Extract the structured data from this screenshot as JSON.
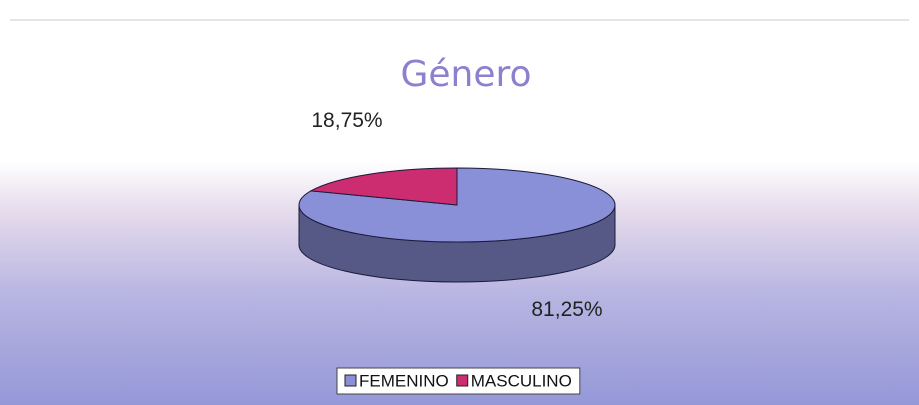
{
  "chart_data": {
    "type": "pie",
    "title": "Género",
    "categories": [
      "FEMENINO",
      "MASCULINO"
    ],
    "values": [
      81.25,
      18.75
    ],
    "value_labels": [
      "81,25%",
      "18,75%"
    ],
    "colors": [
      "#8a90d8",
      "#cc2c70"
    ],
    "legend": "bottom"
  }
}
